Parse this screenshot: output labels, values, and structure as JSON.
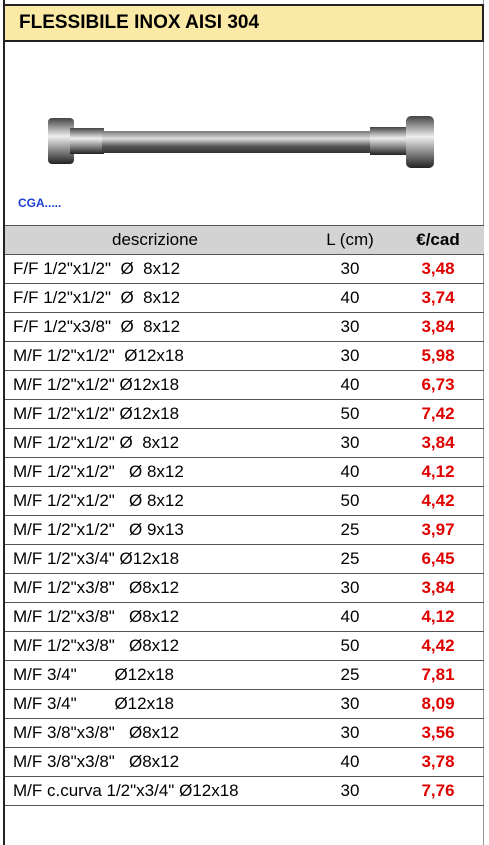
{
  "header": {
    "title": "FLESSIBILE INOX AISI 304",
    "code": "CGA....."
  },
  "table": {
    "columns": [
      "descrizione",
      "L (cm)",
      "€/cad"
    ],
    "rows": [
      [
        "F/F 1/2\"x1/2\"  Ø  8x12",
        30,
        "3,48"
      ],
      [
        "F/F 1/2\"x1/2\"  Ø  8x12",
        40,
        "3,74"
      ],
      [
        "F/F 1/2\"x3/8\"  Ø  8x12",
        30,
        "3,84"
      ],
      [
        "M/F 1/2\"x1/2\"  Ø12x18",
        30,
        "5,98"
      ],
      [
        "M/F 1/2\"x1/2\" Ø12x18",
        40,
        "6,73"
      ],
      [
        "M/F 1/2\"x1/2\" Ø12x18",
        50,
        "7,42"
      ],
      [
        "M/F 1/2\"x1/2\" Ø  8x12",
        30,
        "3,84"
      ],
      [
        "M/F 1/2\"x1/2\"   Ø 8x12",
        40,
        "4,12"
      ],
      [
        "M/F 1/2\"x1/2\"   Ø 8x12",
        50,
        "4,42"
      ],
      [
        "M/F 1/2\"x1/2\"   Ø 9x13",
        25,
        "3,97"
      ],
      [
        "M/F 1/2\"x3/4\" Ø12x18",
        25,
        "6,45"
      ],
      [
        "M/F 1/2\"x3/8\"   Ø8x12",
        30,
        "3,84"
      ],
      [
        "M/F 1/2\"x3/8\"   Ø8x12",
        40,
        "4,12"
      ],
      [
        "M/F 1/2\"x3/8\"   Ø8x12",
        50,
        "4,42"
      ],
      [
        "M/F 3/4\"        Ø12x18",
        25,
        "7,81"
      ],
      [
        "M/F 3/4\"        Ø12x18",
        30,
        "8,09"
      ],
      [
        "M/F 3/8\"x3/8\"   Ø8x12",
        30,
        "3,56"
      ],
      [
        "M/F 3/8\"x3/8\"   Ø8x12",
        40,
        "3,78"
      ],
      [
        "M/F c.curva 1/2\"x3/4\" Ø12x18",
        30,
        "7,76"
      ]
    ]
  }
}
